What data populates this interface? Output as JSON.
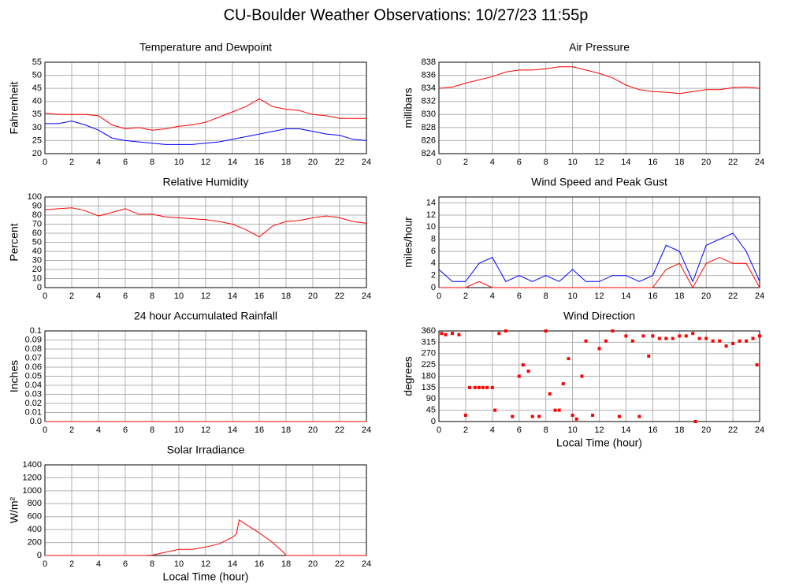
{
  "title": "CU-Boulder Weather Observations: 10/27/23 11:55p",
  "chart_data": [
    {
      "type": "line",
      "title": "Temperature and Dewpoint",
      "ylabel": "Fahrenheit",
      "x": [
        0,
        1,
        2,
        3,
        4,
        5,
        6,
        7,
        8,
        9,
        10,
        11,
        12,
        13,
        14,
        15,
        16,
        17,
        18,
        19,
        20,
        21,
        22,
        23,
        24
      ],
      "series": [
        {
          "color": "#ff0000",
          "values": [
            35.5,
            35,
            35,
            35,
            34.5,
            31,
            29.5,
            30,
            29,
            29.5,
            30.5,
            31,
            32,
            34,
            36,
            38,
            41,
            38,
            37,
            36.5,
            35,
            34.5,
            33.5,
            33.5,
            33.5
          ]
        },
        {
          "color": "#0000ff",
          "values": [
            31.5,
            31.5,
            32.5,
            31,
            29,
            26,
            25,
            24.5,
            24,
            23.5,
            23.5,
            23.5,
            24,
            24.5,
            25.5,
            26.5,
            27.5,
            28.5,
            29.5,
            29.5,
            28.5,
            27.5,
            27,
            25.5,
            25
          ]
        }
      ],
      "xlim": [
        0,
        24
      ],
      "ylim": [
        20,
        55
      ],
      "xticks": [
        0,
        2,
        4,
        6,
        8,
        10,
        12,
        14,
        16,
        18,
        20,
        22,
        24
      ],
      "yticks": [
        20,
        25,
        30,
        35,
        40,
        45,
        50,
        55
      ],
      "grid": true
    },
    {
      "type": "line",
      "title": "Air Pressure",
      "ylabel": "millibars",
      "x": [
        0,
        1,
        2,
        3,
        4,
        5,
        6,
        7,
        8,
        9,
        10,
        11,
        12,
        13,
        14,
        15,
        16,
        17,
        18,
        19,
        20,
        21,
        22,
        23,
        24
      ],
      "series": [
        {
          "color": "#ff0000",
          "values": [
            834,
            834.2,
            834.8,
            835.3,
            835.8,
            836.5,
            836.8,
            836.8,
            837,
            837.3,
            837.3,
            836.8,
            836.3,
            835.6,
            834.5,
            833.8,
            833.5,
            833.4,
            833.2,
            833.5,
            833.8,
            833.8,
            834.1,
            834.2,
            834
          ]
        }
      ],
      "xlim": [
        0,
        24
      ],
      "ylim": [
        824,
        838
      ],
      "xticks": [
        0,
        2,
        4,
        6,
        8,
        10,
        12,
        14,
        16,
        18,
        20,
        22,
        24
      ],
      "yticks": [
        824,
        826,
        828,
        830,
        832,
        834,
        836,
        838
      ],
      "grid": true
    },
    {
      "type": "line",
      "title": "Relative Humidity",
      "ylabel": "Percent",
      "x": [
        0,
        1,
        2,
        3,
        4,
        5,
        6,
        7,
        8,
        9,
        10,
        11,
        12,
        13,
        14,
        15,
        16,
        17,
        18,
        19,
        20,
        21,
        22,
        23,
        24
      ],
      "series": [
        {
          "color": "#ff0000",
          "values": [
            86,
            87,
            88,
            85,
            79,
            83,
            87,
            81,
            81,
            78,
            77,
            76,
            75,
            73,
            70,
            64,
            56,
            68,
            73,
            74,
            77,
            79,
            77,
            73,
            71
          ]
        }
      ],
      "xlim": [
        0,
        24
      ],
      "ylim": [
        0,
        100
      ],
      "xticks": [
        0,
        2,
        4,
        6,
        8,
        10,
        12,
        14,
        16,
        18,
        20,
        22,
        24
      ],
      "yticks": [
        0,
        10,
        20,
        30,
        40,
        50,
        60,
        70,
        80,
        90,
        100
      ],
      "grid": true
    },
    {
      "type": "line",
      "title": "Wind Speed and Peak Gust",
      "ylabel": "miles/hour",
      "x": [
        0,
        1,
        2,
        3,
        4,
        5,
        6,
        7,
        8,
        9,
        10,
        11,
        12,
        13,
        14,
        15,
        16,
        17,
        18,
        19,
        20,
        21,
        22,
        23,
        24
      ],
      "series": [
        {
          "color": "#0000ff",
          "values": [
            3,
            1,
            1,
            4,
            5,
            1,
            2,
            1,
            2,
            1,
            3,
            1,
            1,
            2,
            2,
            1,
            2,
            7,
            6,
            1,
            7,
            8,
            9,
            6,
            1
          ]
        },
        {
          "color": "#ff0000",
          "values": [
            0,
            0,
            0,
            1,
            0,
            0,
            0,
            0,
            0,
            0,
            0,
            0,
            0,
            0,
            0,
            0,
            0,
            3,
            4,
            0,
            4,
            5,
            4,
            4,
            0
          ]
        }
      ],
      "xlim": [
        0,
        24
      ],
      "ylim": [
        0,
        15
      ],
      "xticks": [
        0,
        2,
        4,
        6,
        8,
        10,
        12,
        14,
        16,
        18,
        20,
        22,
        24
      ],
      "yticks": [
        0,
        2,
        4,
        6,
        8,
        10,
        12,
        14
      ],
      "grid": true
    },
    {
      "type": "line",
      "title": "24 hour Accumulated Rainfall",
      "ylabel": "Inches",
      "x": [
        0,
        24
      ],
      "series": [
        {
          "color": "#ff0000",
          "values": [
            0,
            0
          ]
        }
      ],
      "xlim": [
        0,
        24
      ],
      "ylim": [
        0,
        0.1
      ],
      "xticks": [
        0,
        2,
        4,
        6,
        8,
        10,
        12,
        14,
        16,
        18,
        20,
        22,
        24
      ],
      "yticks": [
        {
          "value": 0,
          "label": "0.0"
        },
        0.01,
        0.02,
        0.03,
        0.04,
        0.05,
        0.06,
        0.07,
        0.08,
        0.09,
        0.1
      ],
      "grid": true
    },
    {
      "type": "scatter",
      "title": "Wind Direction",
      "ylabel": "degrees",
      "xlabel": "Local Time (hour)",
      "x": [
        0.2,
        0.5,
        1,
        1.5,
        2,
        2.3,
        2.7,
        3,
        3.3,
        3.6,
        4,
        4.2,
        4.5,
        5,
        5.5,
        6,
        6.3,
        6.7,
        7,
        7.5,
        8,
        8.3,
        8.7,
        9,
        9.3,
        9.7,
        10,
        10.3,
        10.7,
        11,
        11.5,
        12,
        12.5,
        13,
        13.5,
        14,
        14.5,
        15,
        15.3,
        15.7,
        16,
        16.5,
        17,
        17.5,
        18,
        18.5,
        19,
        19.2,
        19.5,
        20,
        20.5,
        21,
        21.5,
        22,
        22.5,
        23,
        23.5,
        23.8,
        24
      ],
      "series": [
        {
          "color": "#ff0000",
          "values": [
            350,
            345,
            350,
            345,
            25,
            135,
            135,
            135,
            135,
            135,
            135,
            45,
            350,
            360,
            20,
            180,
            225,
            200,
            20,
            20,
            360,
            110,
            45,
            45,
            150,
            250,
            25,
            10,
            180,
            320,
            25,
            290,
            320,
            360,
            20,
            340,
            320,
            20,
            340,
            260,
            340,
            330,
            330,
            330,
            340,
            340,
            350,
            0,
            330,
            330,
            320,
            320,
            300,
            310,
            320,
            320,
            330,
            225,
            340
          ]
        }
      ],
      "xlim": [
        0,
        24
      ],
      "ylim": [
        0,
        360
      ],
      "xticks": [
        0,
        2,
        4,
        6,
        8,
        10,
        12,
        14,
        16,
        18,
        20,
        22,
        24
      ],
      "yticks": [
        0,
        45,
        90,
        135,
        180,
        225,
        270,
        315,
        360
      ],
      "grid": true
    },
    {
      "type": "line",
      "title": "Solar Irradiance",
      "ylabel": "W/m²",
      "xlabel": "Local Time (hour)",
      "x": [
        0,
        7.5,
        8,
        9,
        10,
        11,
        12,
        13,
        14,
        14.3,
        14.5,
        15,
        16,
        17,
        17.8,
        18,
        24
      ],
      "series": [
        {
          "color": "#ff0000",
          "values": [
            0,
            0,
            5,
            50,
            95,
            95,
            130,
            180,
            280,
            330,
            550,
            480,
            350,
            200,
            50,
            0,
            0
          ]
        }
      ],
      "xlim": [
        0,
        24
      ],
      "ylim": [
        0,
        1400
      ],
      "xticks": [
        0,
        2,
        4,
        6,
        8,
        10,
        12,
        14,
        16,
        18,
        20,
        22,
        24
      ],
      "yticks": [
        0,
        200,
        400,
        600,
        800,
        1000,
        1200,
        1400
      ],
      "grid": true
    }
  ]
}
